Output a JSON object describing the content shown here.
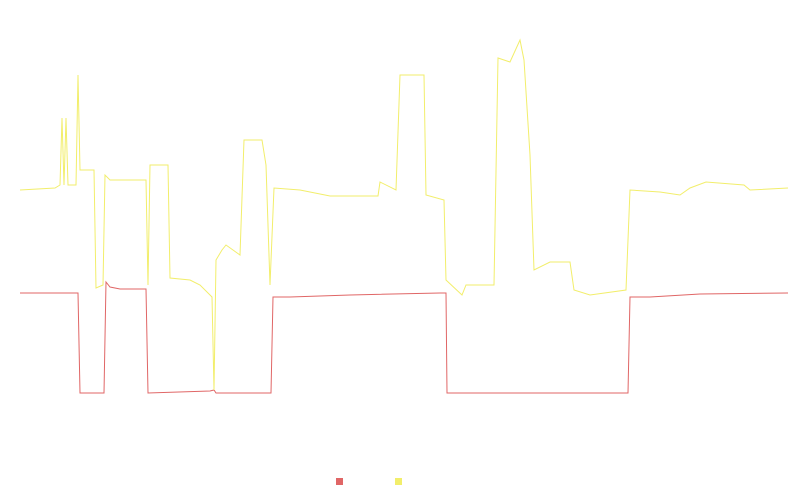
{
  "chart_data": {
    "type": "line",
    "xlim": [
      20,
      788
    ],
    "ylim": [
      0,
      380
    ],
    "series": [
      {
        "color": "#e06666",
        "x": [
          20,
          78,
          80,
          104,
          106,
          110,
          120,
          146,
          148,
          210,
          214,
          216,
          271,
          273,
          290,
          350,
          440,
          446,
          447,
          628,
          630,
          650,
          700,
          788
        ],
        "values": [
          107,
          107,
          7,
          7,
          118,
          113,
          111,
          111,
          7,
          9,
          10,
          7,
          7,
          103,
          103,
          105,
          107,
          107,
          7,
          7,
          103,
          103,
          106,
          107
        ]
      },
      {
        "color": "#f2ee6b",
        "x": [
          20,
          55,
          60,
          62,
          64,
          66,
          68,
          76,
          78,
          80,
          94,
          96,
          103,
          105,
          110,
          146,
          148,
          150,
          168,
          170,
          190,
          200,
          212,
          214,
          216,
          222,
          226,
          240,
          244,
          262,
          266,
          270,
          274,
          300,
          330,
          378,
          380,
          396,
          400,
          424,
          426,
          444,
          446,
          462,
          466,
          494,
          498,
          510,
          520,
          524,
          530,
          534,
          550,
          570,
          574,
          590,
          626,
          630,
          660,
          680,
          690,
          706,
          744,
          750,
          788
        ],
        "values": [
          210,
          212,
          215,
          282,
          215,
          282,
          215,
          215,
          325,
          230,
          230,
          112,
          115,
          225,
          220,
          220,
          115,
          235,
          235,
          122,
          120,
          115,
          103,
          10,
          140,
          150,
          155,
          145,
          260,
          260,
          235,
          115,
          212,
          210,
          204,
          204,
          218,
          210,
          325,
          325,
          205,
          200,
          120,
          105,
          115,
          115,
          342,
          338,
          360,
          340,
          245,
          130,
          138,
          138,
          110,
          105,
          110,
          210,
          208,
          205,
          212,
          218,
          215,
          210,
          212
        ]
      }
    ],
    "legend": "bottom"
  }
}
